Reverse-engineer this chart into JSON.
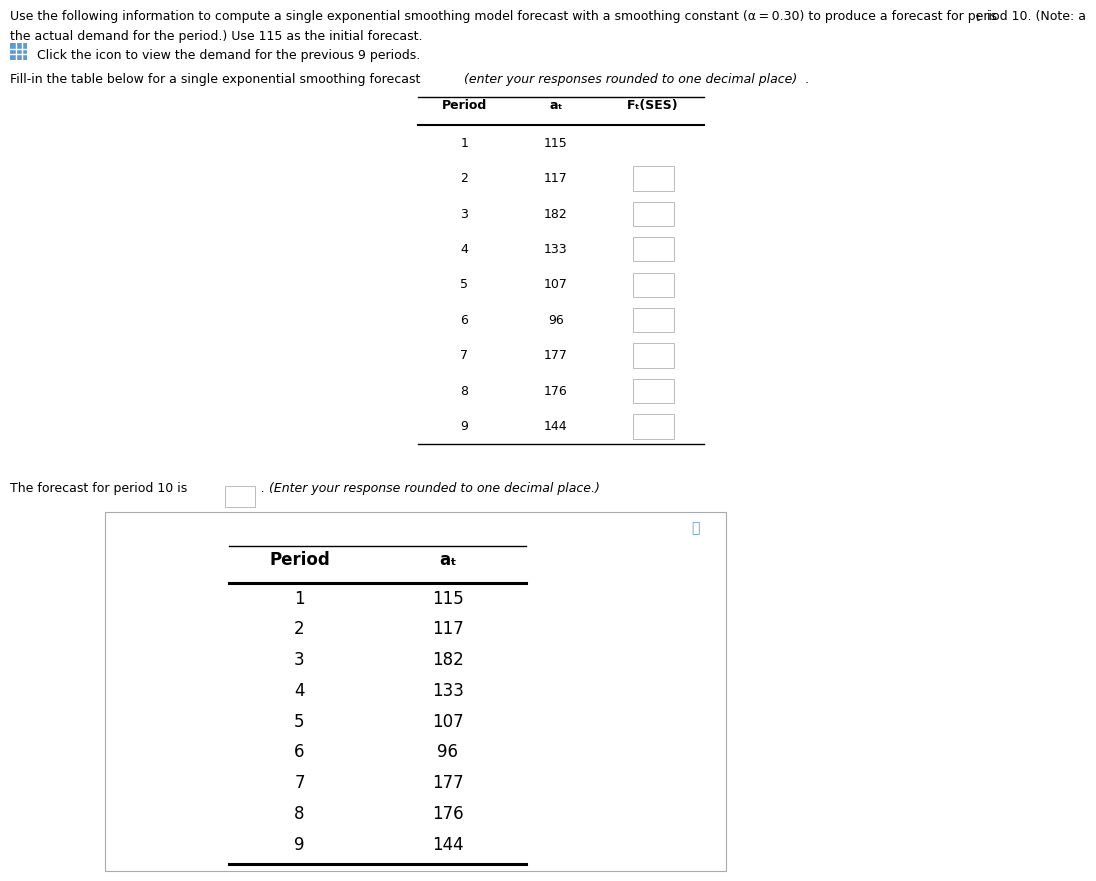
{
  "periods": [
    1,
    2,
    3,
    4,
    5,
    6,
    7,
    8,
    9
  ],
  "demand": [
    115,
    117,
    182,
    133,
    107,
    96,
    177,
    176,
    144
  ],
  "bg_color": "#ffffff",
  "text_color": "#000000",
  "line1": "Use the following information to compute a single exponential smoothing model forecast with a smoothing constant (α = 0.30) to produce a forecast for period 10. (Note: a",
  "line1_super": "t",
  "line1_end": " is",
  "line2": "the actual demand for the period.) Use 115 as the initial forecast.",
  "click_text": "Click the icon to view the demand for the previous 9 periods.",
  "fillin_normal": "Fill-in the table below for a single exponential smoothing forecast ",
  "fillin_italic": "(enter your responses rounded to one decimal place)",
  "fillin_dot": ".",
  "forecast_normal": "The forecast for period 10 is",
  "forecast_italic": "(Enter your response rounded to one decimal place.)",
  "table_col1_header": "Period",
  "table_col2_header": "aₜ",
  "table_col3_header": "Fₜ(SES)",
  "bottom_col1_header": "Period",
  "bottom_col2_header": "aₜ",
  "icon_color": "#5b9bd5",
  "box_edge_color": "#bbbbbb",
  "popup_edge_color": "#aaaaaa",
  "font_size_main": 9.0,
  "font_size_table": 9.0,
  "font_size_bottom": 12.0
}
